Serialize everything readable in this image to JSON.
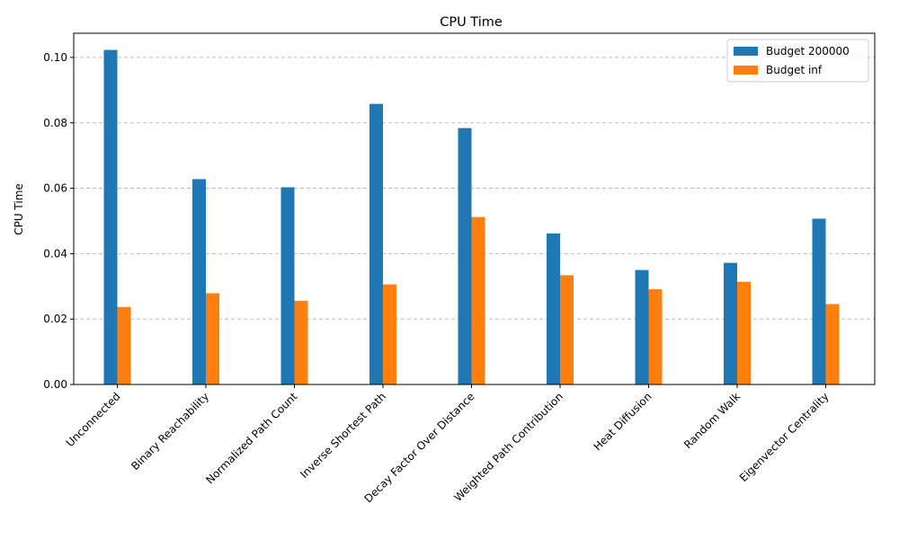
{
  "chart_data": {
    "type": "bar",
    "title": "CPU Time",
    "xlabel": "",
    "ylabel": "CPU Time",
    "categories": [
      "Unconnected",
      "Binary Reachability",
      "Normalized Path Count",
      "Inverse Shortest Path",
      "Decay Factor Over Distance",
      "Weighted Path Contribution",
      "Heat Diffusion",
      "Random Walk",
      "Eigenvector Centrality"
    ],
    "series": [
      {
        "name": "Budget 200000",
        "color": "#1f77b4",
        "values": [
          0.1023,
          0.0628,
          0.0603,
          0.0858,
          0.0784,
          0.0462,
          0.035,
          0.0372,
          0.0507
        ]
      },
      {
        "name": "Budget inf",
        "color": "#ff7f0e",
        "values": [
          0.0237,
          0.0279,
          0.0256,
          0.0306,
          0.0512,
          0.0334,
          0.0291,
          0.0314,
          0.0246
        ]
      }
    ],
    "ylim": [
      0,
      0.1074
    ],
    "yticks": [
      "0.00",
      "0.02",
      "0.04",
      "0.06",
      "0.08",
      "0.10"
    ],
    "ytick_values": [
      0,
      0.02,
      0.04,
      0.06,
      0.08,
      0.1
    ],
    "grid": "y-dashed",
    "legend_position": "top-right"
  }
}
